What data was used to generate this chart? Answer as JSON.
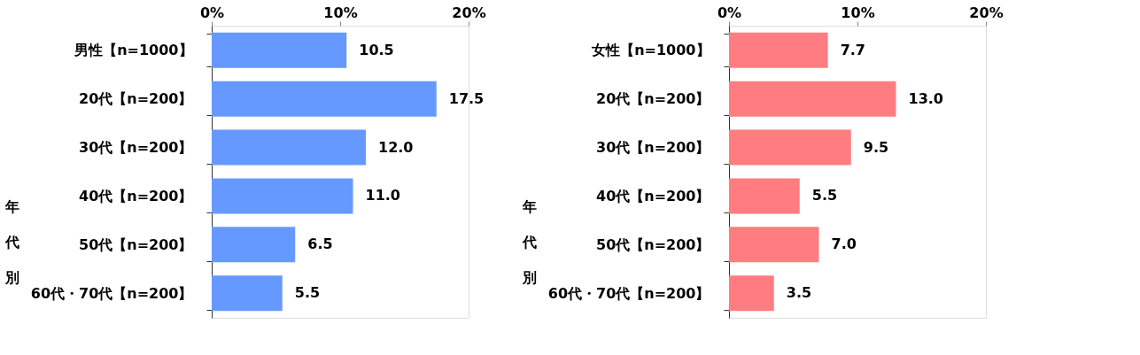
{
  "chart_data": [
    {
      "type": "bar",
      "orientation": "horizontal",
      "categories": [
        "男性【n=1000】",
        "20代【n=200】",
        "30代【n=200】",
        "40代【n=200】",
        "50代【n=200】",
        "60代・70代【n=200】"
      ],
      "values": [
        10.5,
        17.5,
        12.0,
        11.0,
        6.5,
        5.5
      ],
      "color": "#6699ff",
      "value_labels": [
        "10.5",
        "17.5",
        "12.0",
        "11.0",
        "6.5",
        "5.5"
      ],
      "xlim": [
        0,
        20
      ],
      "xticks": [
        {
          "value": 0,
          "label": "0%"
        },
        {
          "value": 10,
          "label": "10%"
        },
        {
          "value": 20,
          "label": "20%"
        }
      ],
      "grid": false,
      "annotations": [
        "年代別"
      ]
    },
    {
      "type": "bar",
      "orientation": "horizontal",
      "categories": [
        "女性【n=1000】",
        "20代【n=200】",
        "30代【n=200】",
        "40代【n=200】",
        "50代【n=200】",
        "60代・70代【n=200】"
      ],
      "values": [
        7.7,
        13.0,
        9.5,
        5.5,
        7.0,
        3.5
      ],
      "color": "#ff7c80",
      "value_labels": [
        "7.7",
        "13.0",
        "9.5",
        "5.5",
        "7.0",
        "3.5"
      ],
      "xlim": [
        0,
        20
      ],
      "xticks": [
        {
          "value": 0,
          "label": "0%"
        },
        {
          "value": 10,
          "label": "10%"
        },
        {
          "value": 20,
          "label": "20%"
        }
      ],
      "grid": false,
      "annotations": [
        "年代別"
      ]
    }
  ]
}
